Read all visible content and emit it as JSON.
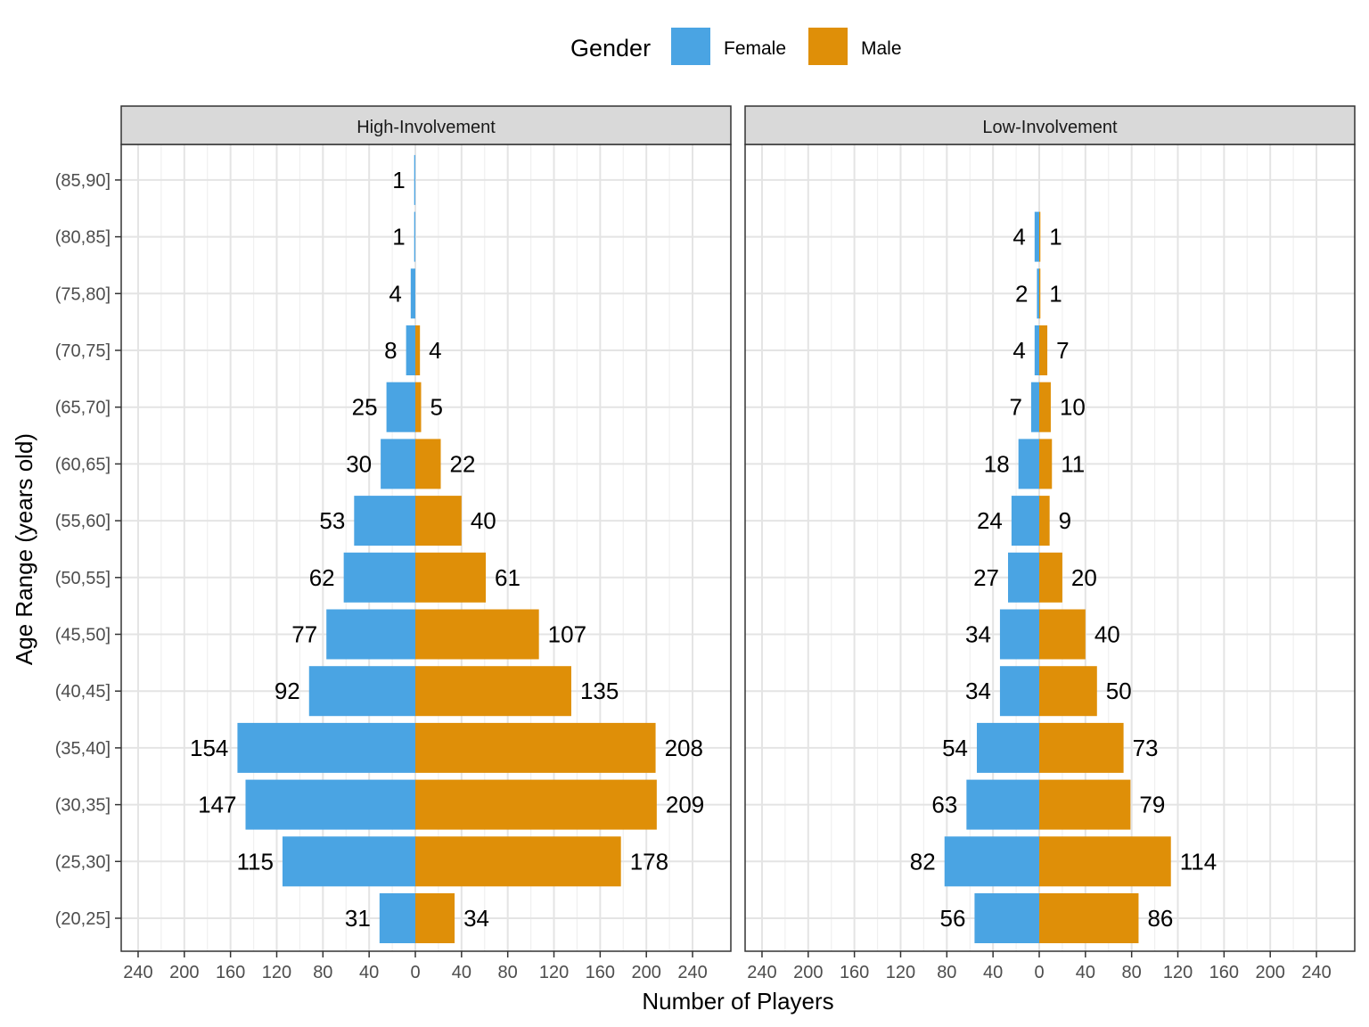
{
  "chart_data": {
    "type": "bar",
    "orientation": "horizontal",
    "layout": "population-pyramid",
    "xlabel": "Number of Players",
    "ylabel": "Age Range (years old)",
    "x_ticks": [
      240,
      200,
      160,
      120,
      80,
      40,
      0,
      40,
      80,
      120,
      160,
      200,
      240
    ],
    "xlim": [
      -240,
      240
    ],
    "grid": true,
    "legend": {
      "title": "Gender",
      "position": "top",
      "entries": [
        {
          "label": "Female",
          "color": "#4aa4e3"
        },
        {
          "label": "Male",
          "color": "#df8f08"
        }
      ]
    },
    "categories": [
      "(20,25]",
      "(25,30]",
      "(30,35]",
      "(35,40]",
      "(40,45]",
      "(45,50]",
      "(50,55]",
      "(55,60]",
      "(60,65]",
      "(65,70]",
      "(70,75]",
      "(75,80]",
      "(80,85]",
      "(85,90]"
    ],
    "panels": [
      {
        "title": "High-Involvement",
        "series": [
          {
            "name": "Female",
            "side": "left",
            "values": [
              31,
              115,
              147,
              154,
              92,
              77,
              62,
              53,
              30,
              25,
              8,
              4,
              1,
              1
            ]
          },
          {
            "name": "Male",
            "side": "right",
            "values": [
              34,
              178,
              209,
              208,
              135,
              107,
              61,
              40,
              22,
              5,
              4,
              null,
              null,
              null
            ]
          }
        ]
      },
      {
        "title": "Low-Involvement",
        "series": [
          {
            "name": "Female",
            "side": "left",
            "values": [
              56,
              82,
              63,
              54,
              34,
              34,
              27,
              24,
              18,
              7,
              4,
              2,
              4,
              null
            ]
          },
          {
            "name": "Male",
            "side": "right",
            "values": [
              86,
              114,
              79,
              73,
              50,
              40,
              20,
              9,
              11,
              10,
              7,
              1,
              1,
              null
            ]
          }
        ]
      }
    ]
  }
}
